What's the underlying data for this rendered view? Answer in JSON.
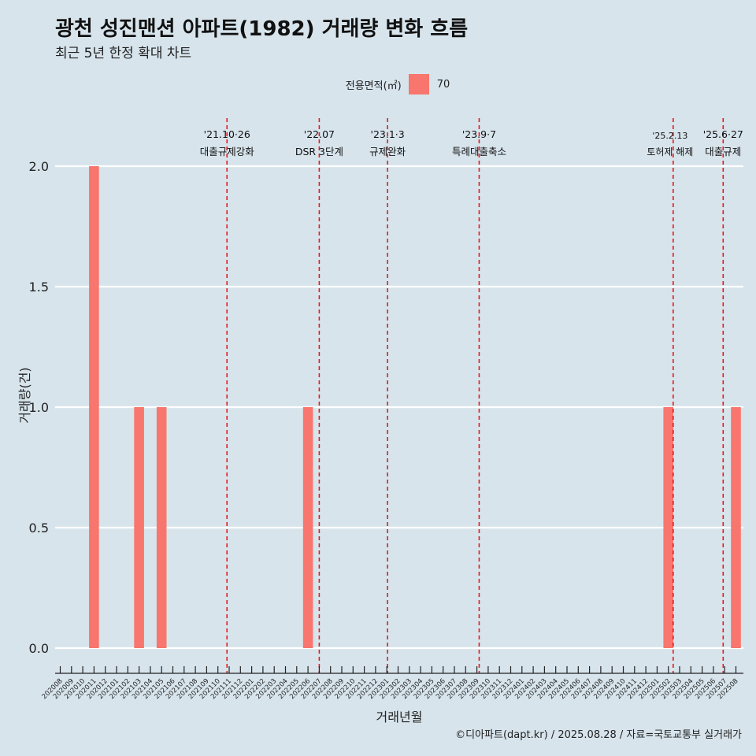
{
  "chart_data": {
    "type": "bar",
    "title": "광천 성진맨션 아파트(1982) 거래량 변화 흐름",
    "subtitle": "최근 5년 한정 확대 차트",
    "xlabel": "거래년월",
    "ylabel": "거래량(건)",
    "caption": "©디아파트(dapt.kr) / 2025.08.28 / 자료=국토교통부 실거래가",
    "legend": {
      "title": "전용면적(㎡)",
      "position": "top",
      "entries": [
        {
          "name": "70",
          "color": "#f8766d"
        }
      ]
    },
    "ylim": [
      0,
      2.1
    ],
    "y_ticks": [
      "0.0",
      "0.5",
      "1.0",
      "1.5",
      "2.0"
    ],
    "y_tick_values": [
      0,
      0.5,
      1.0,
      1.5,
      2.0
    ],
    "grid": true,
    "categories": [
      "202008",
      "202009",
      "202010",
      "202011",
      "202012",
      "202101",
      "202102",
      "202103",
      "202104",
      "202105",
      "202106",
      "202107",
      "202108",
      "202109",
      "202110",
      "202111",
      "202112",
      "202201",
      "202202",
      "202203",
      "202204",
      "202205",
      "202206",
      "202207",
      "202208",
      "202209",
      "202210",
      "202211",
      "202212",
      "202301",
      "202302",
      "202303",
      "202304",
      "202305",
      "202306",
      "202307",
      "202308",
      "202309",
      "202310",
      "202311",
      "202312",
      "202401",
      "202402",
      "202403",
      "202404",
      "202405",
      "202406",
      "202407",
      "202408",
      "202409",
      "202410",
      "202411",
      "202412",
      "202501",
      "202502",
      "202503",
      "202504",
      "202505",
      "202506",
      "202507",
      "202508"
    ],
    "series": [
      {
        "name": "70",
        "color": "#f8766d",
        "values": [
          0,
          0,
          0,
          2,
          0,
          0,
          0,
          1,
          0,
          1,
          0,
          0,
          0,
          0,
          0,
          0,
          0,
          0,
          0,
          0,
          0,
          0,
          1,
          0,
          0,
          0,
          0,
          0,
          0,
          0,
          0,
          0,
          0,
          0,
          0,
          0,
          0,
          0,
          0,
          0,
          0,
          0,
          0,
          0,
          0,
          0,
          0,
          0,
          0,
          0,
          0,
          0,
          0,
          0,
          1,
          0,
          0,
          0,
          0,
          0,
          1
        ]
      }
    ],
    "annotations": [
      {
        "x": "2021-10-26",
        "label_line1": "'21.10·26",
        "label_line2": "대출규제강화"
      },
      {
        "x": "2022-07-01",
        "label_line1": "'22.07",
        "label_line2": "DSR 3단계"
      },
      {
        "x": "2023-01-03",
        "label_line1": "'23.1·3",
        "label_line2": "규제완화"
      },
      {
        "x": "2023-09-07",
        "label_line1": "'23.9·7",
        "label_line2": "특례대출축소"
      },
      {
        "x": "2025-02-13",
        "label_line1": "'25.2.13",
        "label_line2": "토허제 해제"
      },
      {
        "x": "2025-06-27",
        "label_line1": "'25.6·27",
        "label_line2": "대출규제"
      }
    ],
    "colors": {
      "bar": "#f8766d",
      "vline": "#e41a1c",
      "grid": "#ffffff",
      "background": "#d7e4ec"
    }
  }
}
